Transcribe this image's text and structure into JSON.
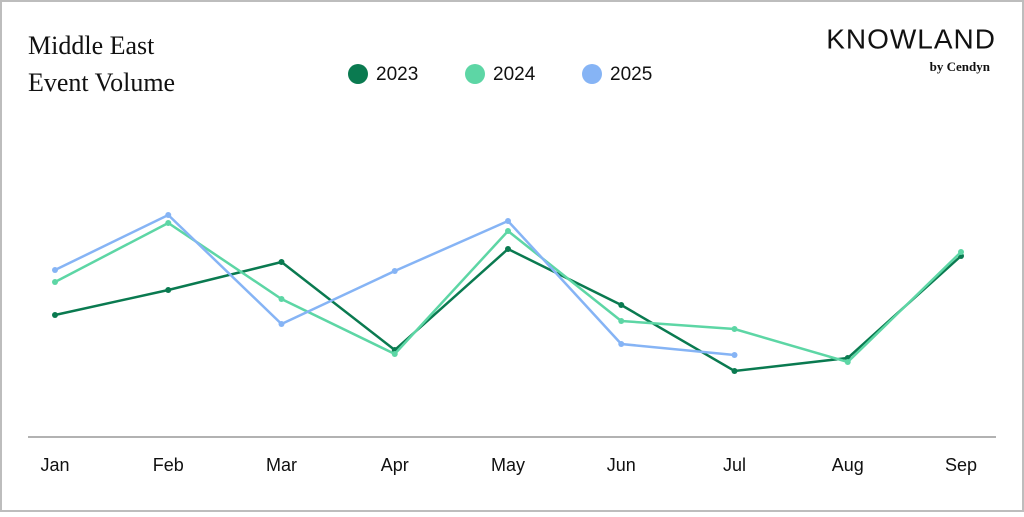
{
  "chart_data": {
    "type": "line",
    "title": [
      "Middle East",
      "Event Volume"
    ],
    "logo": {
      "name": "KNOWLAND",
      "byline": "by Cendyn"
    },
    "categories": [
      "Jan",
      "Feb",
      "Mar",
      "Apr",
      "May",
      "Jun",
      "Jul",
      "Aug",
      "Sep"
    ],
    "series": [
      {
        "name": "2023",
        "color": "#0a7a50",
        "values": [
          122,
          147,
          175,
          87,
          188,
          132,
          66,
          79,
          181
        ]
      },
      {
        "name": "2024",
        "color": "#5dd6a5",
        "values": [
          155,
          214,
          138,
          83,
          206,
          116,
          108,
          75,
          185
        ]
      },
      {
        "name": "2025",
        "color": "#86b4f5",
        "values": [
          167,
          222,
          113,
          166,
          216,
          93,
          82,
          null,
          null
        ]
      }
    ],
    "ylim": [
      0,
      250
    ],
    "legend": "top"
  }
}
